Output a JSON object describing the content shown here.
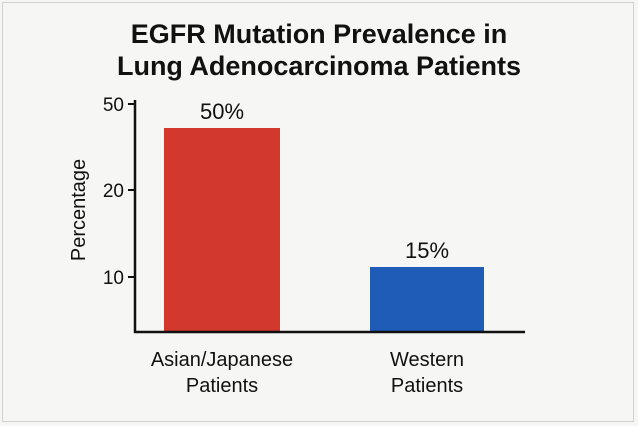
{
  "chart_data": {
    "type": "bar",
    "title_lines": [
      "EGFR Mutation Prevalence in",
      "Lung Adenocarcinoma Patients"
    ],
    "ylabel": "Percentage",
    "xlabel": "",
    "categories": [
      [
        "Asian/Japanese",
        "Patients"
      ],
      [
        "Western",
        "Patients"
      ]
    ],
    "values": [
      50,
      15
    ],
    "data_labels": [
      "50%",
      "15%"
    ],
    "colors": [
      "#d2382c",
      "#1f5cb8"
    ],
    "yticks": [
      {
        "value": 10,
        "label": "10"
      },
      {
        "value": 20,
        "label": "20"
      },
      {
        "value": 50,
        "label": "50"
      }
    ],
    "grid": false,
    "legend": "none"
  }
}
